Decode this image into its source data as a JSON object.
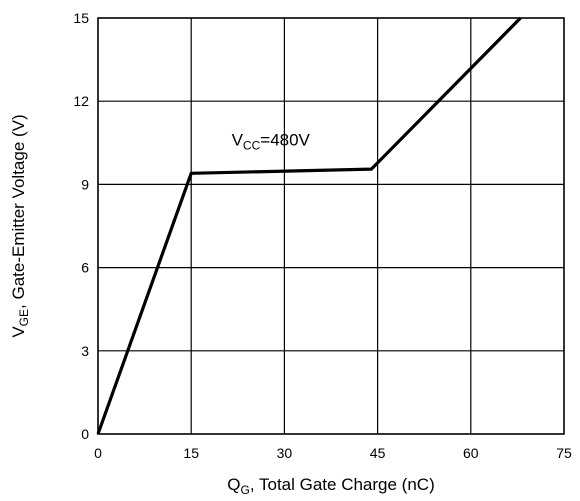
{
  "chart_data": {
    "type": "line",
    "xlabel": {
      "main": "Q",
      "sub": "G",
      "rest": ", Total Gate Charge (nC)"
    },
    "ylabel": {
      "main": "V",
      "sub": "GE",
      "rest": ", Gate-Emitter Voltage (V)"
    },
    "xlim": [
      0,
      75
    ],
    "ylim": [
      0,
      15
    ],
    "xticks": [
      0,
      15,
      30,
      45,
      60,
      75
    ],
    "yticks": [
      0,
      3,
      6,
      9,
      12,
      15
    ],
    "grid": true,
    "series": [
      {
        "x": [
          0,
          15,
          44,
          68
        ],
        "y": [
          0,
          9.4,
          9.55,
          15
        ]
      }
    ],
    "annotations": [
      {
        "main": "V",
        "sub": "CC",
        "rest": "=480V",
        "x": 21.5,
        "y": 10.4
      }
    ]
  }
}
